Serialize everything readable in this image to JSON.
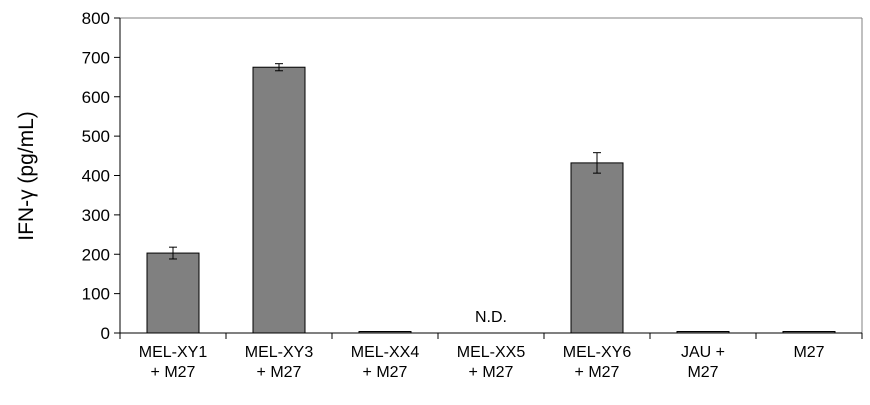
{
  "chart_data": {
    "type": "bar",
    "categories": [
      [
        "MEL-XY1",
        "+ M27"
      ],
      [
        "MEL-XY3",
        "+ M27"
      ],
      [
        "MEL-XX4",
        "+ M27"
      ],
      [
        "MEL-XX5",
        "+ M27"
      ],
      [
        "MEL-XY6",
        "+ M27"
      ],
      [
        "JAU +",
        "M27"
      ],
      [
        "M27"
      ]
    ],
    "values": [
      203,
      675,
      3,
      null,
      432,
      3,
      1
    ],
    "errors": [
      15,
      9,
      0,
      null,
      26,
      0,
      0
    ],
    "annotations": [
      null,
      null,
      null,
      "N.D.",
      null,
      null,
      null
    ],
    "title": "",
    "xlabel": "",
    "ylabel": "IFN-γ (pg/mL)",
    "ylim": [
      0,
      800
    ],
    "yticks": [
      0,
      100,
      200,
      300,
      400,
      500,
      600,
      700,
      800
    ],
    "ytick_labels": [
      "0",
      "100",
      "200",
      "300",
      "400",
      "500",
      "600",
      "700",
      "800"
    ],
    "grid": false,
    "legend": "none",
    "colors": {
      "bar_fill": "#808080",
      "bar_stroke": "#000000",
      "axis": "#000000",
      "plot_border": "#808080",
      "error_bar": "#000000"
    }
  }
}
